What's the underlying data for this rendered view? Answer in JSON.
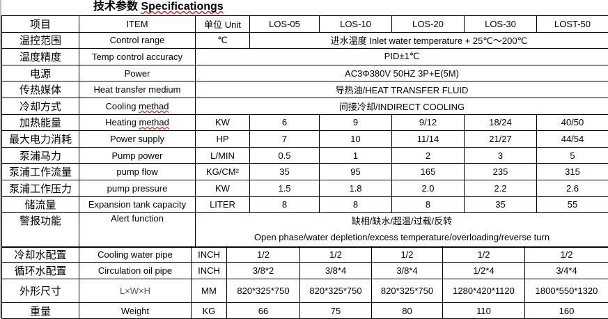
{
  "title": {
    "cn": "技术参数",
    "en": "Specificationgs"
  },
  "header": {
    "cn": "项目",
    "en": "ITEM",
    "unit": "单位 Unit",
    "models": [
      "LOS-05",
      "LOS-10",
      "LOS-20",
      "LOS-30",
      "LOST-50"
    ]
  },
  "span_rows": [
    {
      "cn": "温控范围",
      "en": "Control range",
      "unit": "℃",
      "value": "进水温度 Inlet water temperature + 25℃～200℃"
    },
    {
      "cn": "温度精度",
      "en": "Temp control accuracy",
      "value": "PID±1℃"
    },
    {
      "cn": "电源",
      "en": "Power",
      "value": "AC3Φ380V 50HZ 3P+E(5M)"
    },
    {
      "cn": "传热媒体",
      "en": "Heat transfer medium",
      "value": "导热油/HEAT TRANSFER FLUID"
    },
    {
      "cn": "冷却方式",
      "en": "Cooling methad",
      "value": "间接冷却/INDIRECT COOLING"
    }
  ],
  "rows": [
    {
      "cn": "加热能量",
      "en": "Heating methad",
      "unit": "KW",
      "values": [
        "6",
        "9",
        "9/12",
        "18/24",
        "40/50"
      ]
    },
    {
      "cn": "最大电力消耗",
      "en": "Power supply",
      "unit": "HP",
      "values": [
        "7",
        "10",
        "11/14",
        "21/27",
        "44/54"
      ]
    },
    {
      "cn": "泵浦马力",
      "en": "Pump power",
      "unit": "L/MIN",
      "values": [
        "0.5",
        "1",
        "2",
        "3",
        "5"
      ]
    },
    {
      "cn": "泵浦工作流量",
      "en": "pump flow",
      "unit": "KG/CM²",
      "values": [
        "35",
        "95",
        "165",
        "235",
        "315"
      ]
    },
    {
      "cn": "泵浦工作压力",
      "en": "pump pressure",
      "unit": "KW",
      "values": [
        "1.5",
        "1.8",
        "2.0",
        "2.2",
        "2.6"
      ]
    },
    {
      "cn": "储流量",
      "en": "Expansion tank capacity",
      "unit": "LITER",
      "values": [
        "8",
        "8",
        "8",
        "35",
        "55"
      ]
    }
  ],
  "alert": {
    "cn": "警报功能",
    "en": "Alert function",
    "value_cn": "缺相/缺水/超温/过载/反转",
    "value_en": "Open phase/water depletion/excess temperature/overloading/reverse turn"
  },
  "lower_rows": [
    {
      "cn": "冷却水配置",
      "en": "Cooling water pipe",
      "unit": "INCH",
      "values": [
        "1/2",
        "1/2",
        "1/2",
        "1/2",
        "1/2"
      ]
    },
    {
      "cn": "循环水配置",
      "en": "Circulation oil pipe",
      "unit": "INCH",
      "values": [
        "3/8*2",
        "3/8*4",
        "3/8*4",
        "1/2*4",
        "3/4*4"
      ]
    },
    {
      "cn": "外形尺寸",
      "en": "L×W×H",
      "unit": "MM",
      "values": [
        "820*325*750",
        "820*325*750",
        "820*325*750",
        "1280*420*1120",
        "1800*550*1320"
      ]
    },
    {
      "cn": "重量",
      "en": "Weight",
      "unit": "KG",
      "values": [
        "66",
        "75",
        "80",
        "110",
        "160"
      ]
    }
  ]
}
